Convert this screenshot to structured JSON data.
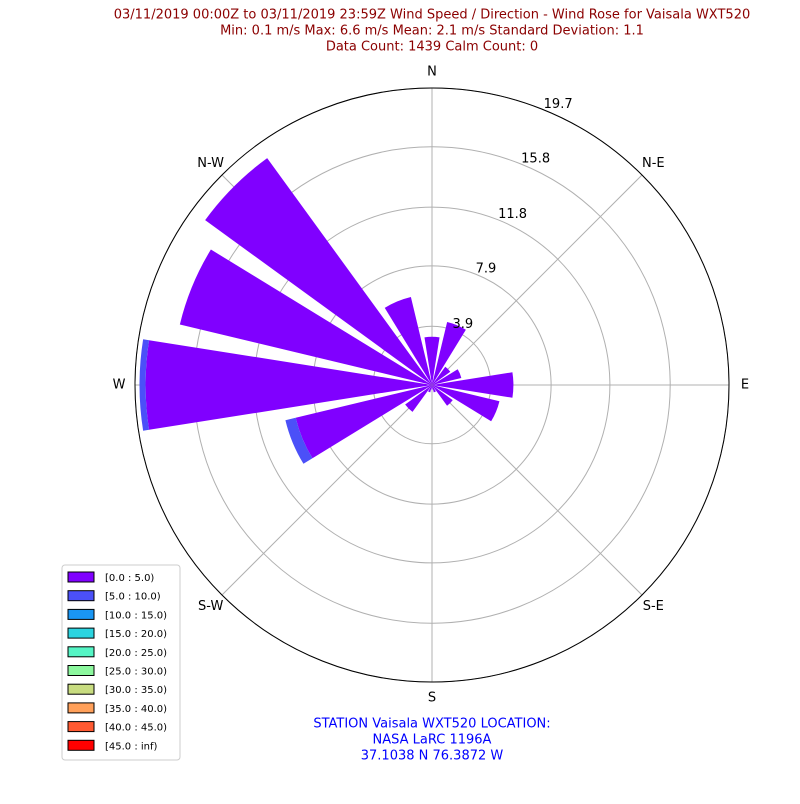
{
  "chart_data": {
    "type": "windrose",
    "title": [
      "03/11/2019 00:00Z to 03/11/2019 23:59Z Wind Speed / Direction - Wind Rose for Vaisala WXT520",
      "Min: 0.1 m/s   Max: 6.6 m/s   Mean: 2.1 m/s  Standard Deviation: 1.1",
      "Data Count: 1439  Calm Count:  0"
    ],
    "footer": [
      "STATION Vaisala WXT520 LOCATION:",
      "NASA LaRC 1196A",
      "37.1038 N 76.3872 W"
    ],
    "categories": [
      "N",
      null,
      "N-E",
      null,
      "E",
      null,
      "S-E",
      null,
      "S",
      null,
      "S-W",
      null,
      "W",
      null,
      "N-W",
      null
    ],
    "ylim": [
      0,
      19.7
    ],
    "yticks": [
      3.9,
      7.9,
      11.8,
      15.8,
      19.7
    ],
    "grid": true,
    "legend": "lower left",
    "series": [
      {
        "name": "[0.0 : 5.0)",
        "color": "#8000ff",
        "values": [
          3.2,
          4.3,
          1.5,
          2.0,
          5.4,
          4.6,
          1.7,
          0.5,
          0.3,
          0.5,
          2.2,
          9.3,
          19.0,
          17.2,
          18.6,
          6.0
        ]
      },
      {
        "name": "[5.0 : 10.0)",
        "color": "#4b50f8",
        "values": [
          0,
          0,
          0,
          0,
          0,
          0,
          0,
          0,
          0,
          0,
          0,
          0.7,
          0.4,
          0,
          0,
          0
        ]
      },
      {
        "name": "[10.0 : 15.0)",
        "color": "#1a96f3",
        "values": [
          0,
          0,
          0,
          0,
          0,
          0,
          0,
          0,
          0,
          0,
          0,
          0,
          0,
          0,
          0,
          0
        ]
      },
      {
        "name": "[15.0 : 20.0)",
        "color": "#2cd4e0",
        "values": [
          0,
          0,
          0,
          0,
          0,
          0,
          0,
          0,
          0,
          0,
          0,
          0,
          0,
          0,
          0,
          0
        ]
      },
      {
        "name": "[20.0 : 25.0)",
        "color": "#55f5c5",
        "values": [
          0,
          0,
          0,
          0,
          0,
          0,
          0,
          0,
          0,
          0,
          0,
          0,
          0,
          0,
          0,
          0
        ]
      },
      {
        "name": "[25.0 : 30.0)",
        "color": "#8cf79e",
        "values": [
          0,
          0,
          0,
          0,
          0,
          0,
          0,
          0,
          0,
          0,
          0,
          0,
          0,
          0,
          0,
          0
        ]
      },
      {
        "name": "[30.0 : 35.0)",
        "color": "#c8dc80",
        "values": [
          0,
          0,
          0,
          0,
          0,
          0,
          0,
          0,
          0,
          0,
          0,
          0,
          0,
          0,
          0,
          0
        ]
      },
      {
        "name": "[35.0 : 40.0)",
        "color": "#ffa05a",
        "values": [
          0,
          0,
          0,
          0,
          0,
          0,
          0,
          0,
          0,
          0,
          0,
          0,
          0,
          0,
          0,
          0
        ]
      },
      {
        "name": "[40.0 : 45.0)",
        "color": "#ff5a32",
        "values": [
          0,
          0,
          0,
          0,
          0,
          0,
          0,
          0,
          0,
          0,
          0,
          0,
          0,
          0,
          0,
          0
        ]
      },
      {
        "name": "[45.0 : inf)",
        "color": "#ff0000",
        "values": [
          0,
          0,
          0,
          0,
          0,
          0,
          0,
          0,
          0,
          0,
          0,
          0,
          0,
          0,
          0,
          0
        ]
      }
    ]
  }
}
